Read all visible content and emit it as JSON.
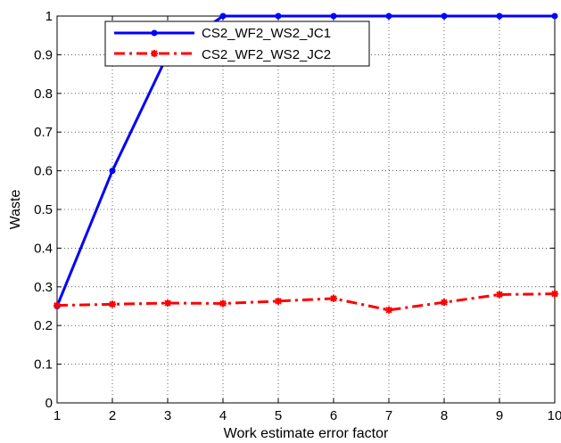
{
  "chart_data": {
    "type": "line",
    "title": "",
    "xlabel": "Work estimate error factor",
    "ylabel": "Waste",
    "xlim": [
      1,
      10
    ],
    "ylim": [
      0,
      1
    ],
    "x_ticks": [
      "1",
      "2",
      "3",
      "4",
      "5",
      "6",
      "7",
      "8",
      "9",
      "10"
    ],
    "y_ticks": [
      "0",
      "0.1",
      "0.2",
      "0.3",
      "0.4",
      "0.5",
      "0.6",
      "0.7",
      "0.8",
      "0.9",
      "1"
    ],
    "grid": true,
    "legend_position": "top-left",
    "x": [
      1,
      2,
      3,
      4,
      5,
      6,
      7,
      8,
      9,
      10
    ],
    "series": [
      {
        "name": "CS2_WF2_WS2_JC1",
        "values": [
          0.25,
          0.6,
          0.9,
          1.0,
          1.0,
          1.0,
          1.0,
          1.0,
          1.0,
          1.0
        ],
        "color": "#0000ff",
        "line_style": "solid",
        "marker": "dot"
      },
      {
        "name": "CS2_WF2_WS2_JC2",
        "values": [
          0.252,
          0.255,
          0.258,
          0.257,
          0.263,
          0.27,
          0.24,
          0.26,
          0.28,
          0.282
        ],
        "color": "#ff0000",
        "line_style": "dash-dot",
        "marker": "asterisk"
      }
    ]
  }
}
